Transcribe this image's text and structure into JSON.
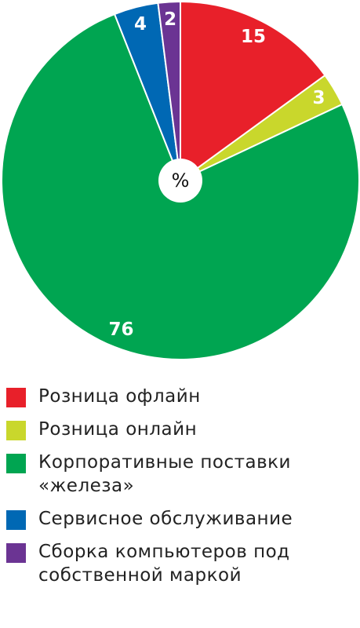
{
  "chart_data": {
    "type": "pie",
    "center_label": "%",
    "categories": [
      "Розница офлайн",
      "Розница онлайн",
      "Корпоративные поставки «железа»",
      "Сервисное обслуживание",
      "Сборка компьютеров под собственной маркой"
    ],
    "values": [
      15,
      3,
      76,
      4,
      2
    ],
    "colors": [
      "#e8202a",
      "#c9d72c",
      "#00a551",
      "#0068b4",
      "#6b3493"
    ]
  }
}
